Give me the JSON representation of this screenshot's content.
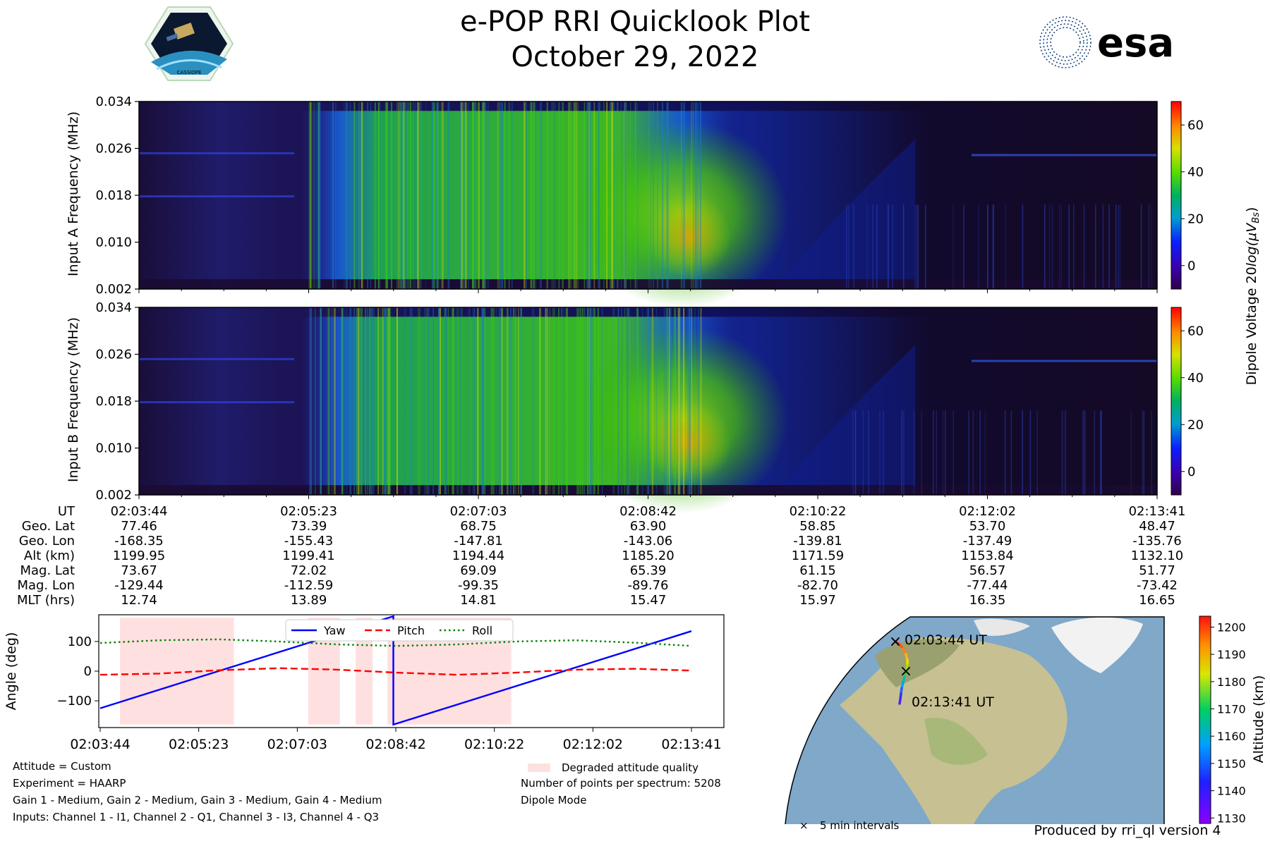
{
  "header": {
    "title": "e-POP RRI Quicklook Plot",
    "date": "October 29, 2022",
    "left_logo_text": "CASSIOPE",
    "right_logo_text": "esa"
  },
  "spectrogram": {
    "yticks": [
      "0.034",
      "0.026",
      "0.018",
      "0.010",
      "0.002"
    ],
    "ylabel_a": "Input A Frequency (MHz)",
    "ylabel_b": "Input B Frequency (MHz)",
    "colorbar_ticks": [
      "60",
      "40",
      "20",
      "0"
    ],
    "colorbar_label_main": "Dipole Voltage 20",
    "colorbar_label_log": "log(",
    "colorbar_label_mu": "μV",
    "colorbar_label_sub": "Bs",
    "colorbar_label_close": ")"
  },
  "ephemeris": {
    "labels": [
      "UT",
      "Geo. Lat",
      "Geo. Lon",
      "Alt (km)",
      "Mag. Lat",
      "Mag. Lon",
      "MLT (hrs)"
    ],
    "columns": [
      [
        "02:03:44",
        "77.46",
        "-168.35",
        "1199.95",
        "73.67",
        "-129.44",
        "12.74"
      ],
      [
        "02:05:23",
        "73.39",
        "-155.43",
        "1199.41",
        "72.02",
        "-112.59",
        "13.89"
      ],
      [
        "02:07:03",
        "68.75",
        "-147.81",
        "1194.44",
        "69.09",
        "-99.35",
        "14.81"
      ],
      [
        "02:08:42",
        "63.90",
        "-143.06",
        "1185.20",
        "65.39",
        "-89.76",
        "15.47"
      ],
      [
        "02:10:22",
        "58.85",
        "-139.81",
        "1171.59",
        "61.15",
        "-82.70",
        "15.97"
      ],
      [
        "02:12:02",
        "53.70",
        "-137.49",
        "1153.84",
        "56.57",
        "-77.44",
        "16.35"
      ],
      [
        "02:13:41",
        "48.47",
        "-135.76",
        "1132.10",
        "51.77",
        "-73.42",
        "16.65"
      ]
    ]
  },
  "chart_data": [
    {
      "type": "heatmap",
      "name": "Input A",
      "ylabel": "Input A Frequency (MHz)",
      "ylim": [
        0.002,
        0.034
      ],
      "xlim": [
        "02:03:44",
        "02:13:41"
      ],
      "colorbar_range": [
        -10,
        70
      ]
    },
    {
      "type": "heatmap",
      "name": "Input B",
      "ylabel": "Input B Frequency (MHz)",
      "ylim": [
        0.002,
        0.034
      ],
      "xlim": [
        "02:03:44",
        "02:13:41"
      ],
      "colorbar_range": [
        -10,
        70
      ]
    },
    {
      "type": "line",
      "ylabel": "Angle (deg)",
      "ylim": [
        -190,
        190
      ],
      "yticks": [
        "100",
        "0",
        "−100"
      ],
      "x_ticks": [
        "02:03:44",
        "02:05:23",
        "02:07:03",
        "02:08:42",
        "02:10:22",
        "02:12:02",
        "02:13:41"
      ],
      "x_seconds_range": [
        0,
        597
      ],
      "legend_position": "top-center",
      "series": [
        {
          "name": "Yaw",
          "color": "#0000ff",
          "style": "solid",
          "x": [
            0,
            296,
            296,
            597
          ],
          "values": [
            -125,
            185,
            -180,
            135
          ]
        },
        {
          "name": "Pitch",
          "color": "#ff0000",
          "style": "dashed",
          "x": [
            0,
            60,
            120,
            180,
            240,
            300,
            360,
            420,
            480,
            540,
            597
          ],
          "values": [
            -12,
            -8,
            3,
            10,
            5,
            -5,
            -12,
            -5,
            5,
            8,
            2
          ]
        },
        {
          "name": "Roll",
          "color": "#008000",
          "style": "dotted",
          "x": [
            0,
            60,
            120,
            180,
            240,
            300,
            360,
            420,
            480,
            540,
            597
          ],
          "values": [
            95,
            104,
            107,
            100,
            90,
            85,
            90,
            100,
            104,
            96,
            85
          ]
        }
      ],
      "degraded_intervals": [
        [
          20,
          135
        ],
        [
          210,
          242
        ],
        [
          258,
          275
        ],
        [
          290,
          415
        ]
      ],
      "degraded_legend": "Degraded attitude quality"
    },
    {
      "type": "scatter",
      "name": "Orbit track",
      "colorbar_label": "Altitude (km)",
      "colorbar_ticks": [
        "1200",
        "1190",
        "1180",
        "1170",
        "1160",
        "1150",
        "1140",
        "1130"
      ],
      "colorbar_range": [
        1128,
        1204
      ],
      "start_label": "02:03:44 UT",
      "end_label": "02:13:41 UT",
      "marker_legend": "5 min intervals"
    }
  ],
  "info": {
    "attitude": "Attitude = Custom",
    "experiment": "Experiment = HAARP",
    "gains": "Gain 1 - Medium, Gain 2 - Medium, Gain 3 - Medium, Gain 4 - Medium",
    "inputs": "Inputs: Channel 1 - I1, Channel 2 - Q1, Channel 3 - I3, Channel 4 - Q3",
    "points": "Number of points per spectrum: 5208",
    "mode": "Dipole Mode",
    "produced": "Produced by rri_ql version 4"
  },
  "colors": {
    "ocean": "#7fa8c9",
    "land": "#c9c59a",
    "ice": "#f2f2f2",
    "degraded": "#ffe0e0",
    "esa_blue": "#0a3a7a"
  }
}
